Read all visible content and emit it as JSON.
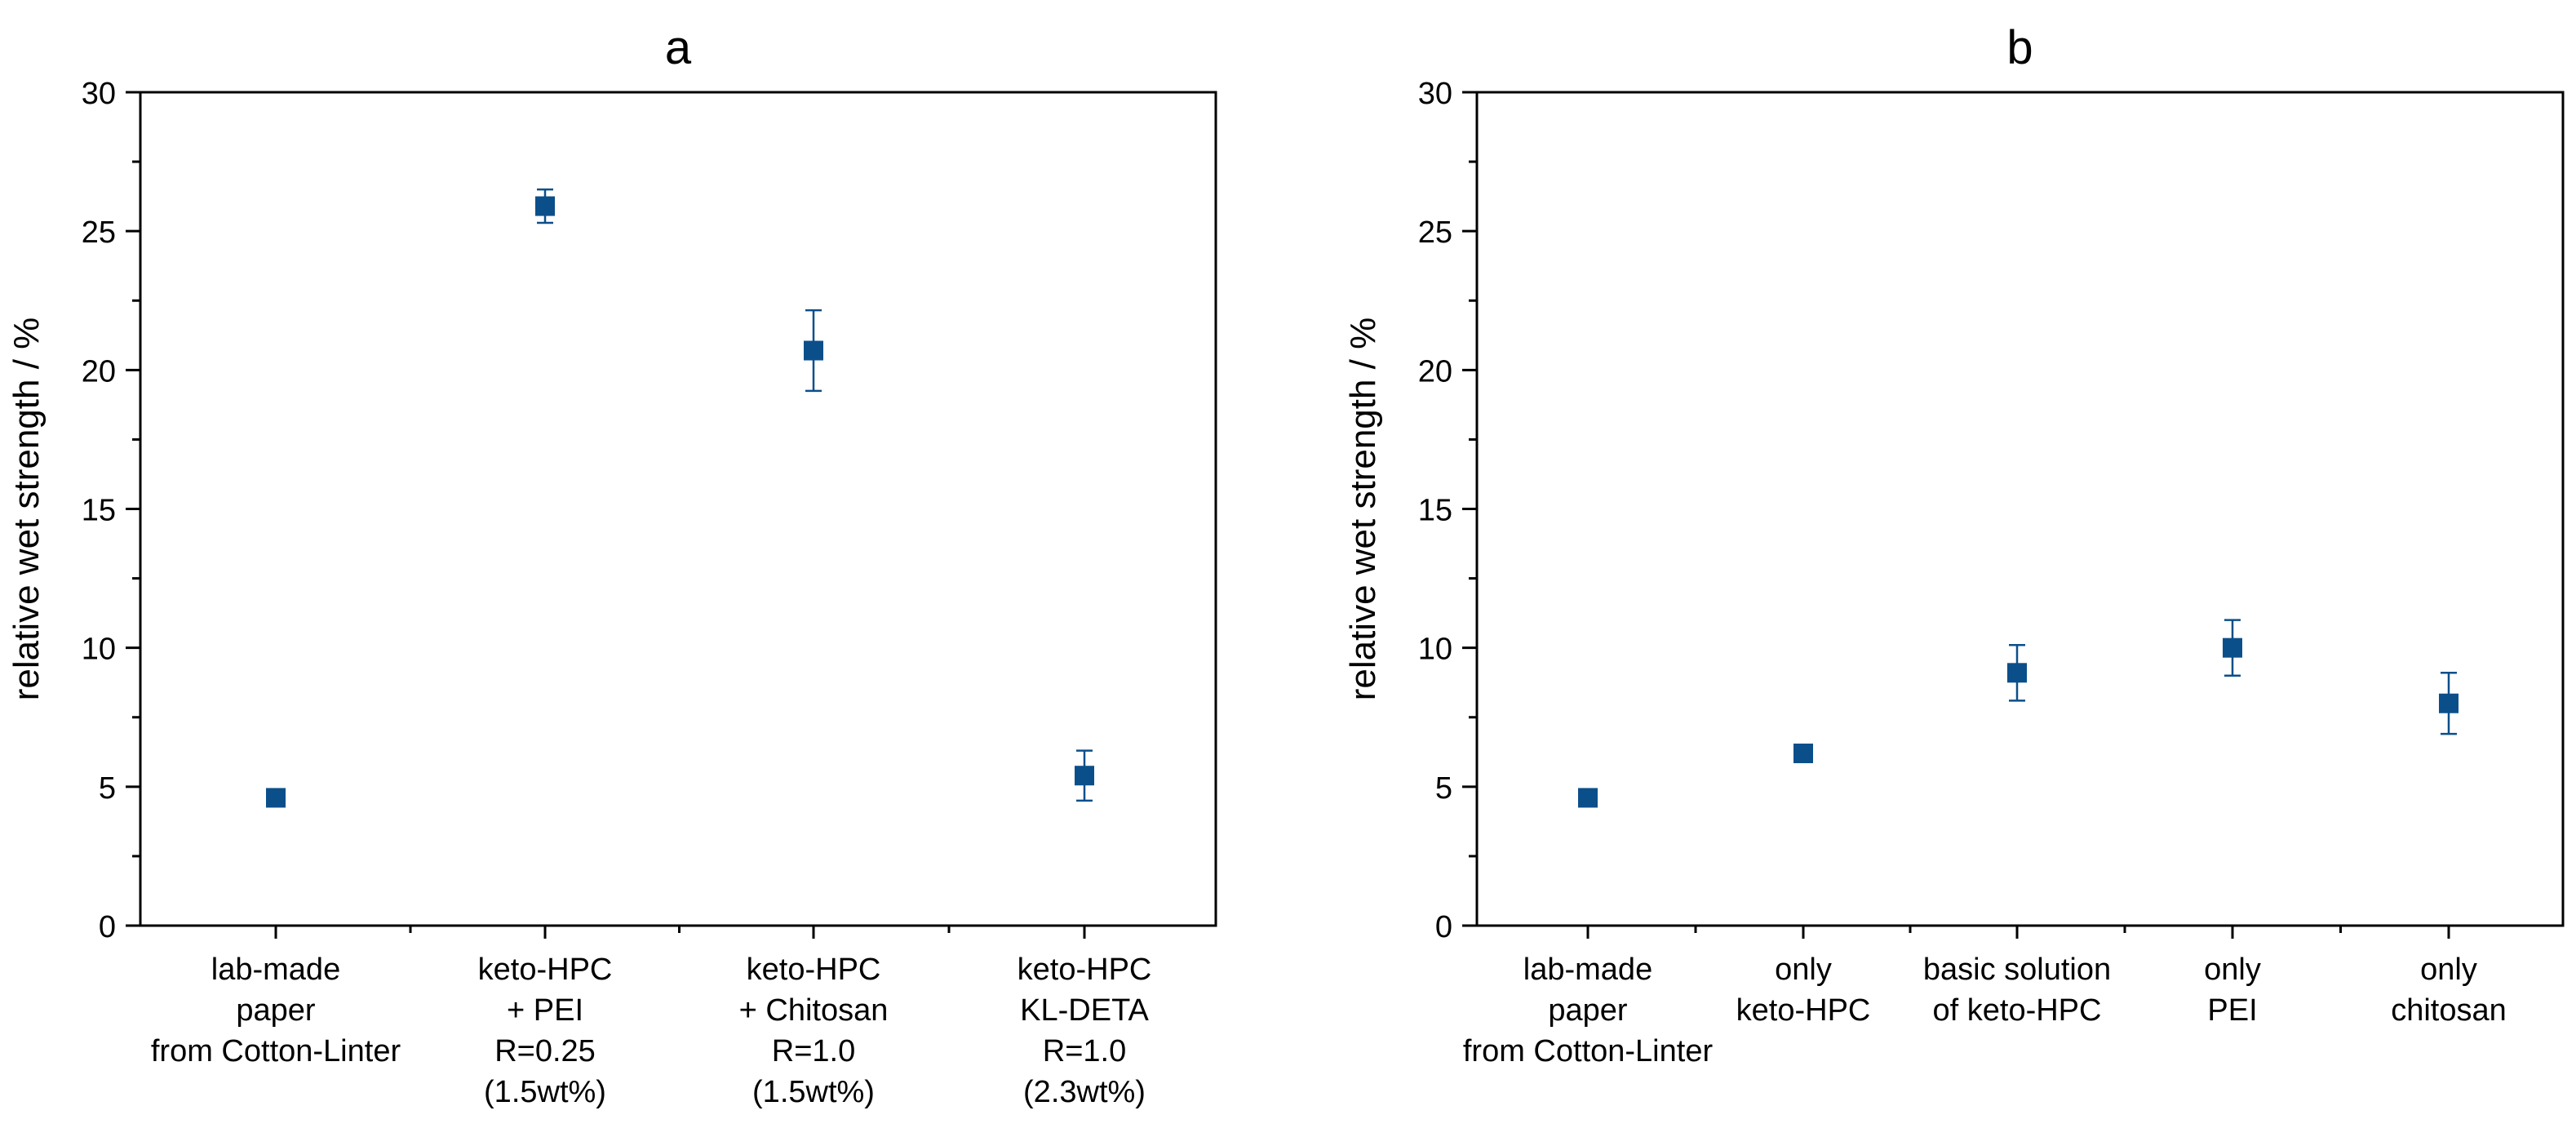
{
  "chart_data": [
    {
      "type": "scatter",
      "title": "a",
      "xlabel": "",
      "ylabel": "relative wet strength / %",
      "ylim": [
        0,
        30
      ],
      "yticks": [
        "0",
        "5",
        "10",
        "15",
        "20",
        "25",
        "30"
      ],
      "grid": false,
      "legend": "none",
      "marker_color": "#0b4f8a",
      "categories": [
        [
          "lab-made",
          "paper",
          "from Cotton-Linter"
        ],
        [
          "keto-HPC",
          "+ PEI",
          "R=0.25",
          "(1.5wt%)"
        ],
        [
          "keto-HPC",
          "+ Chitosan",
          "R=1.0",
          "(1.5wt%)"
        ],
        [
          "keto-HPC",
          "KL-DETA",
          "R=1.0",
          "(2.3wt%)"
        ]
      ],
      "values": [
        4.6,
        25.9,
        20.7,
        5.4
      ],
      "errors": [
        0.3,
        0.6,
        1.45,
        0.9
      ]
    },
    {
      "type": "scatter",
      "title": "b",
      "xlabel": "",
      "ylabel": "relative wet strength / %",
      "ylim": [
        0,
        30
      ],
      "yticks": [
        "0",
        "5",
        "10",
        "15",
        "20",
        "25",
        "30"
      ],
      "grid": false,
      "legend": "none",
      "marker_color": "#0b4f8a",
      "categories": [
        [
          "lab-made",
          "paper",
          "from Cotton-Linter"
        ],
        [
          "only",
          "keto-HPC"
        ],
        [
          "basic solution",
          "of keto-HPC"
        ],
        [
          "only",
          "PEI"
        ],
        [
          "only",
          "chitosan"
        ]
      ],
      "values": [
        4.6,
        6.2,
        9.1,
        10.0,
        8.0
      ],
      "errors": [
        0.3,
        0.2,
        1.0,
        1.0,
        1.1
      ]
    }
  ]
}
